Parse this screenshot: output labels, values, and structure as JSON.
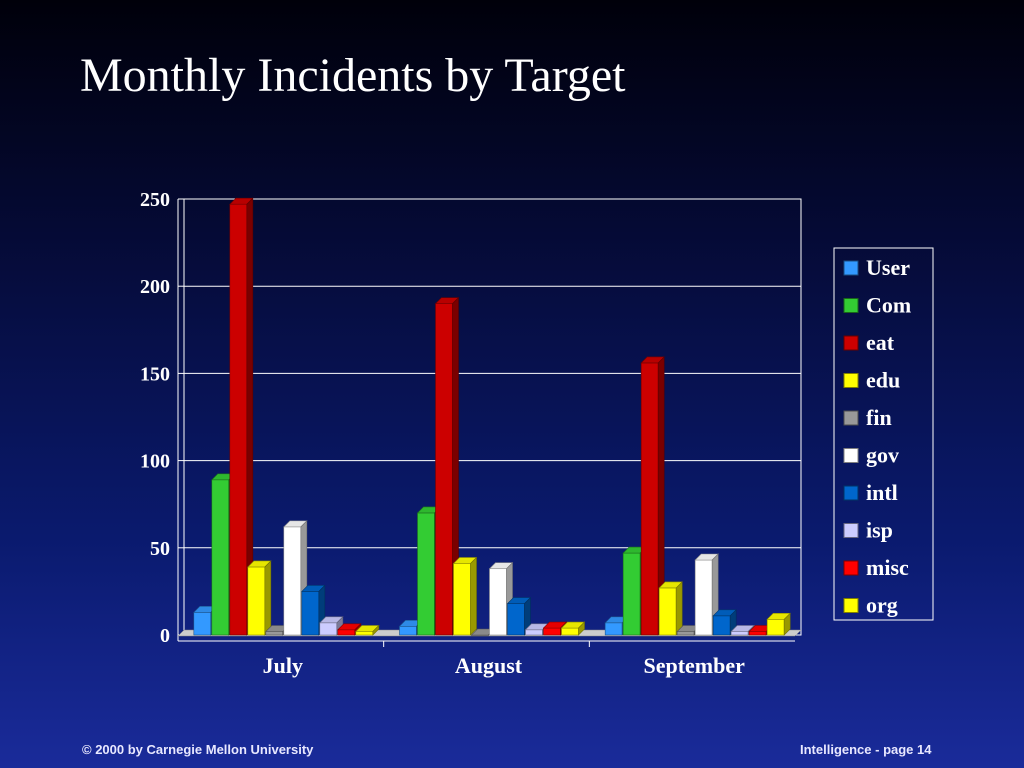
{
  "slide": {
    "title": "Monthly Incidents by Target",
    "footer_left": "© 2000 by Carnegie Mellon University",
    "footer_right": "Intelligence - page 14"
  },
  "chart_data": {
    "type": "bar",
    "title": "",
    "xlabel": "",
    "ylabel": "",
    "ylim": [
      0,
      250
    ],
    "yticks": [
      0,
      50,
      100,
      150,
      200,
      250
    ],
    "grid": true,
    "legend_position": "right",
    "categories": [
      "July",
      "August",
      "September"
    ],
    "series": [
      {
        "name": "User",
        "color": "#3399ff",
        "values": [
          13,
          5,
          7
        ]
      },
      {
        "name": "Com",
        "color": "#33cc33",
        "values": [
          89,
          70,
          47
        ]
      },
      {
        "name": "eat",
        "color": "#cc0000",
        "values": [
          247,
          190,
          156
        ]
      },
      {
        "name": "edu",
        "color": "#ffff00",
        "values": [
          39,
          41,
          27
        ]
      },
      {
        "name": "fin",
        "color": "#999999",
        "values": [
          2,
          0,
          2
        ]
      },
      {
        "name": "gov",
        "color": "#ffffff",
        "values": [
          62,
          38,
          43
        ]
      },
      {
        "name": "intl",
        "color": "#0066cc",
        "values": [
          25,
          18,
          11
        ]
      },
      {
        "name": "isp",
        "color": "#ccccff",
        "values": [
          7,
          3,
          2
        ]
      },
      {
        "name": "misc",
        "color": "#ff0000",
        "values": [
          3,
          4,
          2
        ]
      },
      {
        "name": "org",
        "color": "#ffff00",
        "values": [
          2,
          4,
          9
        ]
      }
    ]
  }
}
